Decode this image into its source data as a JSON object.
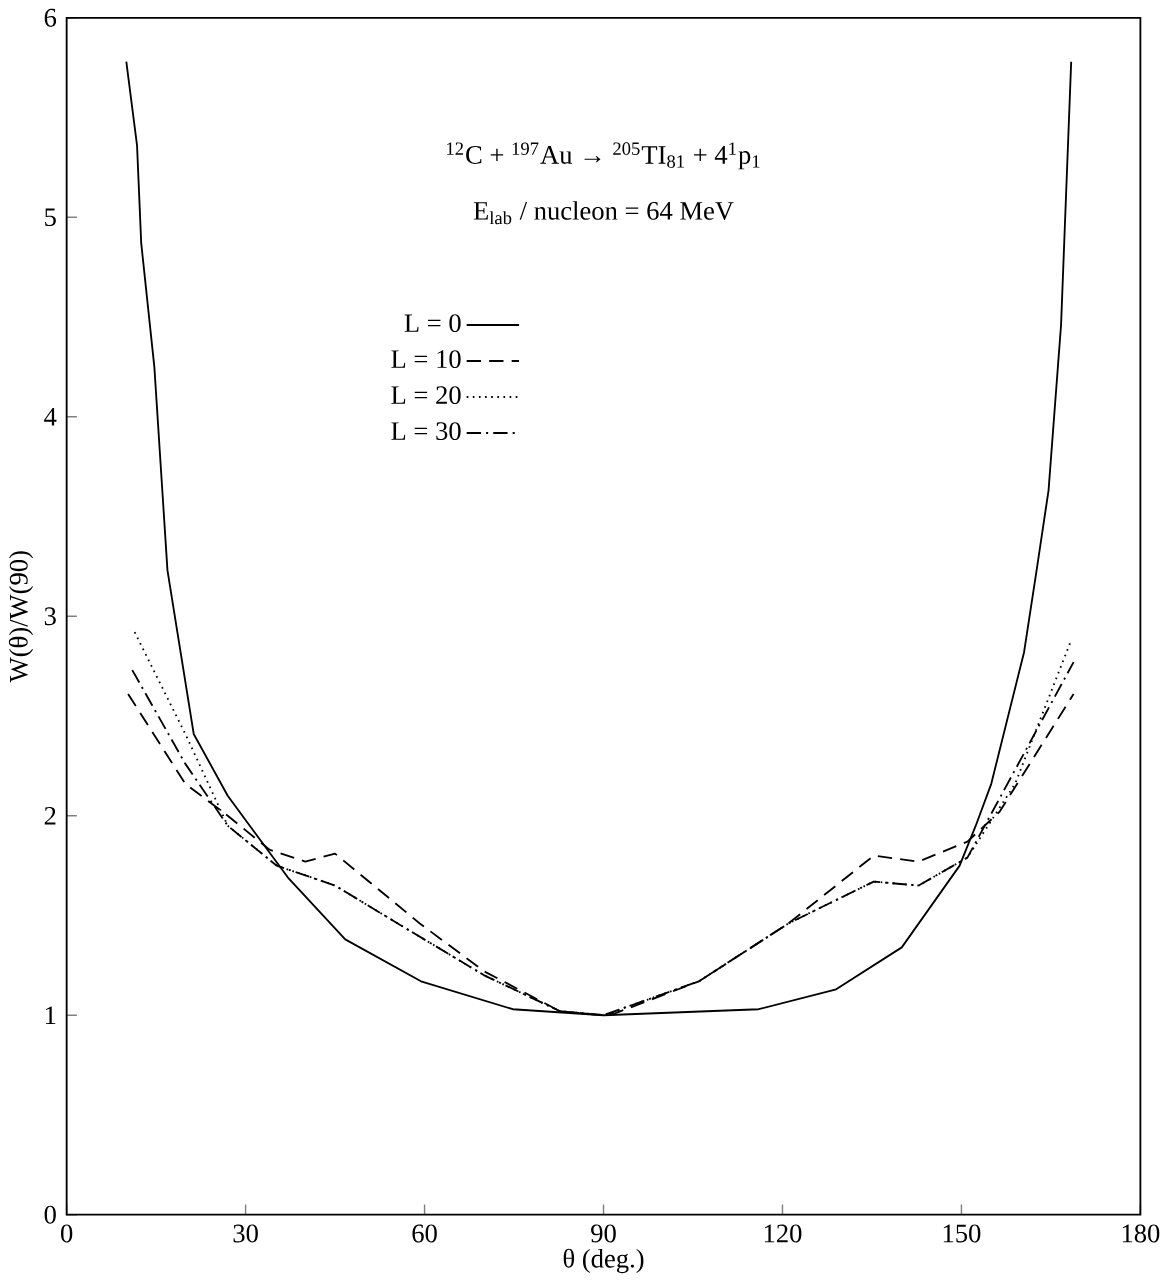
{
  "chart_data": {
    "type": "line",
    "title": "$^{12}$C + $^{197}$Au → $^{205}$TI$_{81}$ + 4$^{1}$p$_{1}$",
    "subtitle": "E$_{lab}$ / nucleon = 64 MeV",
    "xlabel": "θ (deg.)",
    "ylabel": "W(θ)/W(90)",
    "xlim": [
      0,
      180
    ],
    "ylim": [
      0,
      6
    ],
    "xticks": [
      0,
      30,
      60,
      90,
      120,
      150,
      180
    ],
    "yticks": [
      0,
      1,
      2,
      3,
      4,
      5,
      6
    ],
    "grid": false,
    "legend": "top",
    "marker": "none",
    "series": [
      {
        "name": "L = 0",
        "color": "#000000",
        "line_style": "solid",
        "x": [
          10,
          11.8,
          12.5,
          14.7,
          16.9,
          19.1,
          21.3,
          27,
          37.1,
          46.7,
          59.4,
          74.8,
          90,
          116,
          129,
          140,
          149.7,
          152.4,
          155,
          160.5,
          162.6,
          164.6,
          166.7,
          168.4
        ],
        "values": [
          5.78,
          5.36,
          4.87,
          4.25,
          3.23,
          2.82,
          2.41,
          2.1,
          1.69,
          1.38,
          1.17,
          1.03,
          1.0,
          1.03,
          1.13,
          1.34,
          1.75,
          1.95,
          2.16,
          2.82,
          3.23,
          3.63,
          4.46,
          5.78
        ]
      },
      {
        "name": "L = 10",
        "color": "#000000",
        "line_style": "dashed",
        "x": [
          10.3,
          19.9,
          27,
          34,
          40,
          45,
          59.2,
          70,
          82.7,
          90,
          92,
          106,
          121,
          135.3,
          142.8,
          151,
          156.4,
          168.8
        ],
        "values": [
          2.61,
          2.16,
          2.0,
          1.83,
          1.77,
          1.81,
          1.46,
          1.22,
          1.02,
          1.0,
          1.01,
          1.17,
          1.46,
          1.8,
          1.77,
          1.87,
          2.02,
          2.61
        ]
      },
      {
        "name": "L = 20",
        "color": "#000000",
        "line_style": "dotted",
        "x": [
          11.4,
          19.9,
          27,
          35.2,
          45,
          55.5,
          70,
          82.7,
          90,
          106,
          121,
          135.3,
          142.8,
          151,
          159,
          168.4
        ],
        "values": [
          2.92,
          2.41,
          1.95,
          1.75,
          1.65,
          1.46,
          1.2,
          1.02,
          1.0,
          1.17,
          1.46,
          1.67,
          1.65,
          1.79,
          2.16,
          2.88
        ]
      },
      {
        "name": "L = 30",
        "color": "#000000",
        "line_style": "dashdot",
        "x": [
          11,
          19.9,
          27,
          35.2,
          45,
          55.5,
          70,
          82.7,
          90,
          106,
          121,
          135.3,
          142.8,
          151,
          168.8
        ],
        "values": [
          2.73,
          2.26,
          1.95,
          1.75,
          1.65,
          1.46,
          1.2,
          1.02,
          1.0,
          1.17,
          1.46,
          1.67,
          1.65,
          1.79,
          2.77
        ]
      }
    ]
  }
}
